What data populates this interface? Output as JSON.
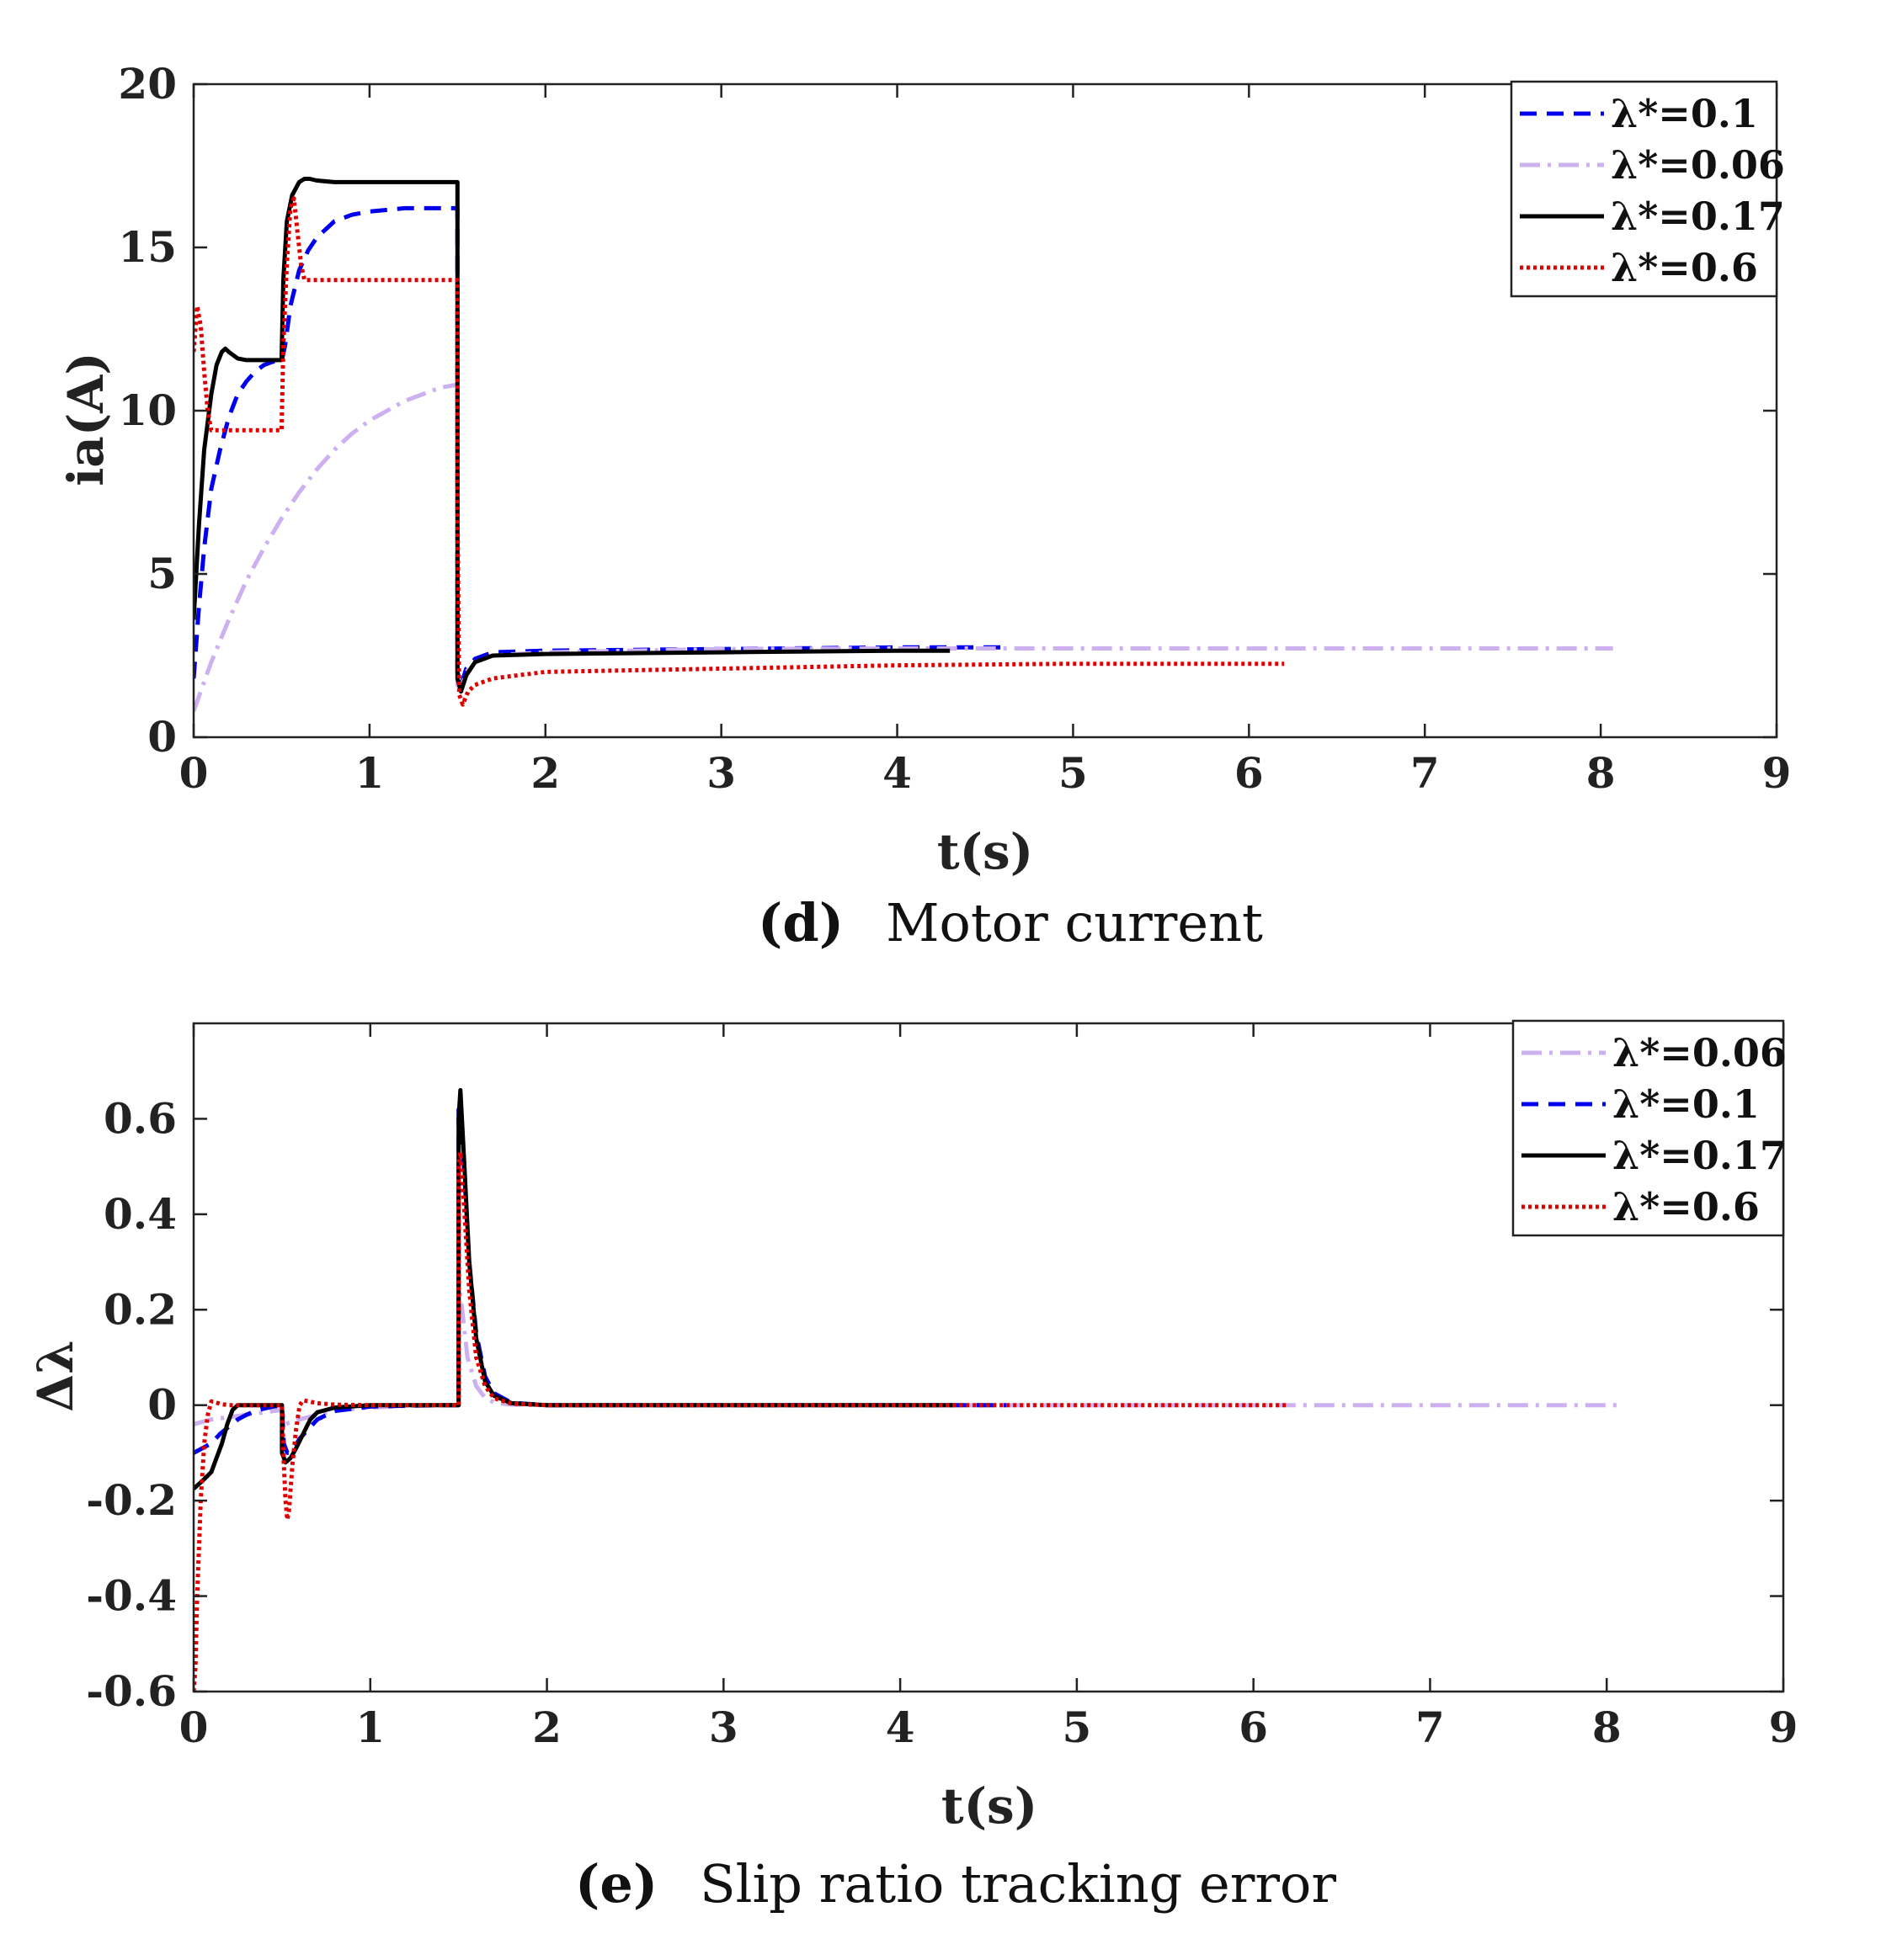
{
  "colors": {
    "l010": "#0000ee",
    "l006": "#cdb0f0",
    "l017": "#000000",
    "l060": "#e00000"
  },
  "chart_data": [
    {
      "type": "line",
      "title": "",
      "caption": {
        "tag": "(d)",
        "text": "Motor current"
      },
      "xlabel": "t(s)",
      "ylabel": "ia(A)",
      "xlim": [
        0,
        9
      ],
      "ylim": [
        0,
        20
      ],
      "xticks": [
        "0",
        "1",
        "2",
        "3",
        "4",
        "5",
        "6",
        "7",
        "8",
        "9"
      ],
      "yticks": [
        "0",
        "5",
        "10",
        "15",
        "20"
      ],
      "legend_position": "top-right",
      "legend": [
        "λ*=0.1",
        "λ*=0.06",
        "λ*=0.17",
        "λ*=0.6"
      ],
      "series": [
        {
          "name": "λ*=0.1",
          "style": "dashed",
          "color_key": "l010",
          "x": [
            0,
            0.03,
            0.06,
            0.1,
            0.15,
            0.2,
            0.25,
            0.3,
            0.35,
            0.4,
            0.45,
            0.5,
            0.52,
            0.55,
            0.6,
            0.65,
            0.7,
            0.8,
            0.9,
            1.0,
            1.1,
            1.2,
            1.3,
            1.4,
            1.5,
            1.5,
            1.52,
            1.55,
            1.6,
            1.7,
            2.0,
            3.0,
            4.0,
            4.6
          ],
          "y": [
            1.8,
            4.0,
            5.8,
            7.6,
            8.8,
            9.8,
            10.5,
            10.9,
            11.2,
            11.4,
            11.5,
            11.5,
            12.0,
            13.2,
            14.3,
            14.9,
            15.3,
            15.8,
            16.0,
            16.1,
            16.15,
            16.2,
            16.2,
            16.2,
            16.2,
            2.0,
            1.6,
            2.1,
            2.4,
            2.6,
            2.65,
            2.7,
            2.75,
            2.75
          ]
        },
        {
          "name": "λ*=0.06",
          "style": "dashdot",
          "color_key": "l006",
          "x": [
            0,
            0.1,
            0.2,
            0.3,
            0.4,
            0.5,
            0.6,
            0.7,
            0.8,
            0.9,
            1.0,
            1.1,
            1.2,
            1.3,
            1.4,
            1.5,
            1.5,
            1.52,
            1.55,
            1.6,
            1.7,
            2.0,
            3.0,
            4.0,
            5.0,
            6.0,
            7.0,
            8.07
          ],
          "y": [
            0.8,
            2.3,
            3.6,
            4.8,
            5.8,
            6.7,
            7.5,
            8.2,
            8.8,
            9.3,
            9.7,
            10.0,
            10.3,
            10.5,
            10.7,
            10.8,
            1.6,
            1.5,
            2.0,
            2.3,
            2.5,
            2.6,
            2.7,
            2.72,
            2.72,
            2.72,
            2.72,
            2.72
          ]
        },
        {
          "name": "λ*=0.17",
          "style": "solid",
          "color_key": "l017",
          "x": [
            0,
            0.03,
            0.06,
            0.1,
            0.13,
            0.16,
            0.18,
            0.2,
            0.25,
            0.3,
            0.35,
            0.4,
            0.45,
            0.5,
            0.51,
            0.53,
            0.56,
            0.6,
            0.63,
            0.66,
            0.7,
            0.8,
            1.0,
            1.2,
            1.4,
            1.5,
            1.5,
            1.52,
            1.55,
            1.6,
            1.7,
            2.0,
            3.0,
            4.0,
            4.3
          ],
          "y": [
            3.6,
            6.5,
            8.8,
            10.5,
            11.4,
            11.8,
            11.9,
            11.8,
            11.6,
            11.55,
            11.55,
            11.55,
            11.55,
            11.55,
            14.0,
            15.8,
            16.6,
            17.0,
            17.1,
            17.1,
            17.05,
            17.0,
            17.0,
            17.0,
            17.0,
            17.0,
            1.8,
            1.4,
            1.9,
            2.3,
            2.5,
            2.55,
            2.6,
            2.65,
            2.65
          ]
        },
        {
          "name": "λ*=0.6",
          "style": "dotted",
          "color_key": "l060",
          "x": [
            0,
            0.02,
            0.04,
            0.06,
            0.08,
            0.1,
            0.15,
            0.2,
            0.3,
            0.4,
            0.5,
            0.51,
            0.53,
            0.55,
            0.57,
            0.59,
            0.61,
            0.63,
            0.65,
            0.7,
            0.8,
            1.0,
            1.2,
            1.4,
            1.5,
            1.5,
            1.51,
            1.53,
            1.56,
            1.6,
            1.7,
            2.0,
            3.0,
            4.0,
            5.0,
            6.0,
            6.2
          ],
          "y": [
            11.8,
            13.2,
            12.6,
            11.2,
            10.0,
            9.4,
            9.4,
            9.4,
            9.4,
            9.4,
            9.4,
            12.0,
            14.5,
            16.2,
            16.5,
            15.5,
            14.5,
            14.0,
            14.0,
            14.0,
            14.0,
            14.0,
            14.0,
            14.0,
            14.0,
            7.0,
            1.3,
            1.0,
            1.4,
            1.6,
            1.8,
            2.0,
            2.1,
            2.2,
            2.25,
            2.25,
            2.25
          ]
        }
      ]
    },
    {
      "type": "line",
      "title": "",
      "caption": {
        "tag": "(e)",
        "text": "Slip ratio tracking error"
      },
      "xlabel": "t(s)",
      "ylabel": "Δλ",
      "xlim": [
        0,
        9
      ],
      "ylim": [
        -0.6,
        0.8
      ],
      "xticks": [
        "0",
        "1",
        "2",
        "3",
        "4",
        "5",
        "6",
        "7",
        "8",
        "9"
      ],
      "yticks": [
        "-0.6",
        "-0.4",
        "-0.2",
        "0",
        "0.2",
        "0.4",
        "0.6"
      ],
      "legend_position": "top-right",
      "legend": [
        "λ*=0.06",
        "λ*=0.1",
        "λ*=0.17",
        "λ*=0.6"
      ],
      "series": [
        {
          "name": "λ*=0.06",
          "style": "dashdot",
          "color_key": "l006",
          "x": [
            0,
            0.1,
            0.2,
            0.3,
            0.4,
            0.5,
            0.52,
            0.55,
            0.6,
            0.7,
            0.8,
            0.9,
            1.0,
            1.2,
            1.4,
            1.5,
            1.5,
            1.52,
            1.55,
            1.6,
            1.65,
            1.7,
            1.8,
            2.0,
            3.0,
            4.0,
            5.0,
            6.0,
            7.0,
            8.07
          ],
          "y": [
            -0.04,
            -0.03,
            -0.025,
            -0.02,
            -0.015,
            -0.01,
            -0.04,
            -0.035,
            -0.03,
            -0.02,
            -0.012,
            -0.008,
            -0.005,
            -0.002,
            0,
            0,
            0.26,
            0.2,
            0.1,
            0.04,
            0.015,
            0.006,
            0.001,
            0,
            0,
            0,
            0,
            0,
            0,
            0
          ]
        },
        {
          "name": "λ*=0.1",
          "style": "dashed",
          "color_key": "l010",
          "x": [
            0,
            0.05,
            0.1,
            0.15,
            0.2,
            0.25,
            0.3,
            0.35,
            0.4,
            0.45,
            0.5,
            0.51,
            0.53,
            0.56,
            0.6,
            0.65,
            0.7,
            0.8,
            1.0,
            1.2,
            1.4,
            1.5,
            1.5,
            1.51,
            1.53,
            1.56,
            1.6,
            1.65,
            1.7,
            1.8,
            2.0,
            3.0,
            4.0,
            4.6
          ],
          "y": [
            -0.1,
            -0.09,
            -0.08,
            -0.06,
            -0.045,
            -0.03,
            -0.02,
            -0.012,
            -0.007,
            -0.003,
            -0.001,
            -0.08,
            -0.1,
            -0.095,
            -0.07,
            -0.05,
            -0.03,
            -0.012,
            -0.003,
            -0.001,
            0,
            0,
            0.62,
            0.64,
            0.5,
            0.3,
            0.15,
            0.06,
            0.025,
            0.005,
            0,
            0,
            0,
            0
          ]
        },
        {
          "name": "λ*=0.17",
          "style": "solid",
          "color_key": "l017",
          "x": [
            0,
            0.03,
            0.06,
            0.1,
            0.13,
            0.16,
            0.19,
            0.22,
            0.25,
            0.3,
            0.4,
            0.5,
            0.5,
            0.52,
            0.55,
            0.58,
            0.62,
            0.66,
            0.7,
            0.8,
            1.0,
            1.2,
            1.4,
            1.5,
            1.5,
            1.51,
            1.53,
            1.56,
            1.6,
            1.65,
            1.7,
            1.8,
            2.0,
            3.0,
            4.0,
            4.3
          ],
          "y": [
            -0.175,
            -0.165,
            -0.155,
            -0.14,
            -0.11,
            -0.08,
            -0.04,
            -0.01,
            0,
            0,
            0,
            0,
            -0.1,
            -0.12,
            -0.11,
            -0.09,
            -0.06,
            -0.03,
            -0.015,
            -0.005,
            0,
            0,
            0,
            0,
            0.6,
            0.66,
            0.52,
            0.3,
            0.14,
            0.05,
            0.02,
            0.004,
            0,
            0,
            0,
            0
          ]
        },
        {
          "name": "λ*=0.6",
          "style": "dotted",
          "color_key": "l060",
          "x": [
            0,
            0.01,
            0.02,
            0.04,
            0.06,
            0.08,
            0.1,
            0.13,
            0.16,
            0.2,
            0.3,
            0.4,
            0.5,
            0.51,
            0.52,
            0.53,
            0.54,
            0.56,
            0.58,
            0.6,
            0.62,
            0.65,
            0.7,
            0.8,
            1.0,
            1.2,
            1.4,
            1.5,
            1.5,
            1.51,
            1.53,
            1.56,
            1.6,
            1.65,
            1.7,
            1.8,
            2.0,
            3.0,
            4.0,
            5.0,
            6.0,
            6.2
          ],
          "y": [
            -0.6,
            -0.55,
            -0.4,
            -0.2,
            -0.08,
            -0.02,
            0.008,
            0.005,
            0.002,
            0,
            0,
            0,
            0,
            -0.12,
            -0.2,
            -0.24,
            -0.22,
            -0.12,
            -0.05,
            0.0,
            0.01,
            0.008,
            0.004,
            0.001,
            0,
            0,
            0,
            0,
            0.5,
            0.53,
            0.42,
            0.24,
            0.1,
            0.04,
            0.015,
            0.003,
            0,
            0,
            0,
            0,
            0,
            0
          ]
        }
      ]
    }
  ]
}
